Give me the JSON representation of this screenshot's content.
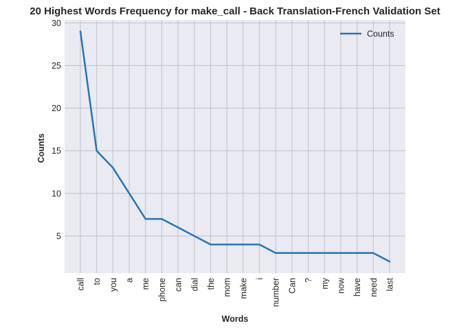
{
  "chart_data": {
    "type": "line",
    "title": "20 Highest Words Frequency for make_call - Back Translation-French Validation Set",
    "xlabel": "Words",
    "ylabel": "Counts",
    "categories": [
      "call",
      "to",
      "you",
      "a",
      "me",
      "phone",
      "can",
      "dial",
      "the",
      "mom",
      "make",
      "i",
      "number",
      "Can",
      "?",
      "my",
      "now",
      "have",
      "need",
      "last"
    ],
    "series": [
      {
        "name": "Counts",
        "values": [
          29,
          15,
          13,
          10,
          7,
          7,
          6,
          5,
          4,
          4,
          4,
          4,
          3,
          3,
          3,
          3,
          3,
          3,
          3,
          2
        ],
        "color": "#1f77b4"
      }
    ],
    "ylim": [
      0.65,
      30.35
    ],
    "yticks": [
      5,
      10,
      15,
      20,
      25,
      30
    ],
    "grid": true,
    "legend": "top-right",
    "colors": {
      "plot_background": "#eaeaf2",
      "grid": "#c0c0c8"
    }
  }
}
